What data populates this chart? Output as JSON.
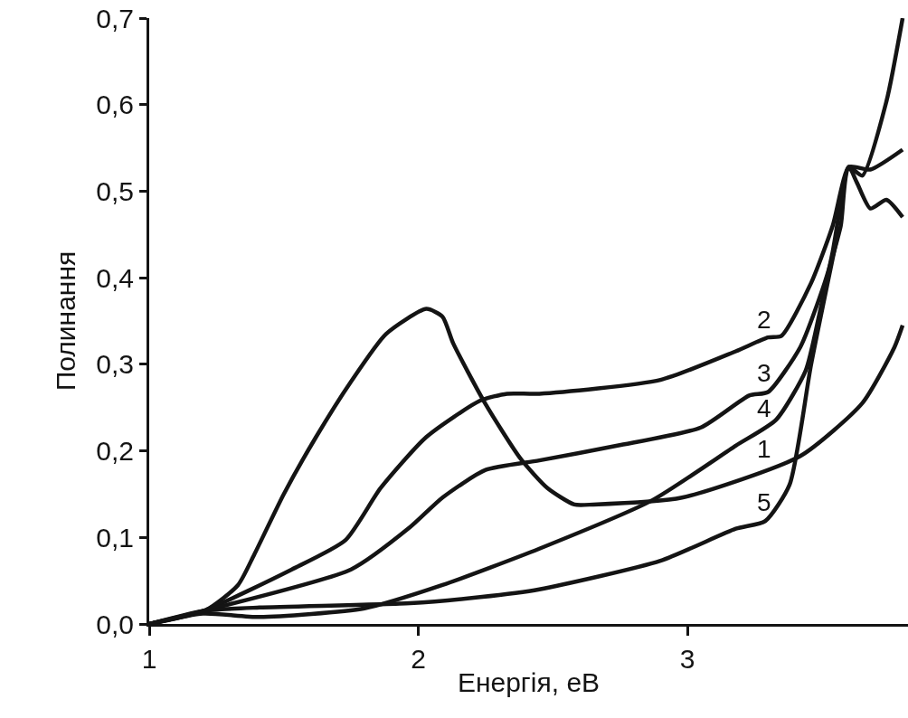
{
  "chart_data": {
    "type": "line",
    "xlabel": "Енергія, еВ",
    "ylabel": "Полинання",
    "xlim": [
      1,
      3.82
    ],
    "xticks": [
      1,
      2,
      3
    ],
    "ylim": [
      0,
      0.7
    ],
    "yticks": [
      {
        "value": 0,
        "label": "0,0"
      },
      {
        "value": 0.1,
        "label": "0,1"
      },
      {
        "value": 0.2,
        "label": "0,2"
      },
      {
        "value": 0.3,
        "label": "0,3"
      },
      {
        "value": 0.4,
        "label": "0,4"
      },
      {
        "value": 0.5,
        "label": "0,5"
      },
      {
        "value": 0.6,
        "label": "0,6"
      },
      {
        "value": 0.7,
        "label": "0,7"
      }
    ],
    "grid": false,
    "legend": false,
    "marker": "none",
    "line_style": "solid",
    "series": [
      {
        "name": "1",
        "color": "#141414",
        "x": [
          1,
          1.21,
          1.33,
          1.39,
          1.5,
          1.62,
          1.75,
          1.88,
          2.03,
          2.09,
          2.13,
          2.25,
          2.38,
          2.48,
          2.58,
          2.65,
          2.98,
          3.42,
          3.65,
          3.77,
          3.8
        ],
        "values": [
          0,
          0.016,
          0.045,
          0.08,
          0.15,
          0.216,
          0.28,
          0.335,
          0.364,
          0.355,
          0.324,
          0.254,
          0.191,
          0.157,
          0.138,
          0.138,
          0.146,
          0.194,
          0.255,
          0.32,
          0.345
        ]
      },
      {
        "name": "2",
        "color": "#141414",
        "x": [
          1,
          1.2,
          1.53,
          1.73,
          1.86,
          2.03,
          2.23,
          2.33,
          2.45,
          2.9,
          3.18,
          3.3,
          3.35,
          3.46,
          3.54,
          3.6,
          3.65,
          3.74,
          3.8
        ],
        "values": [
          0,
          0.015,
          0.063,
          0.097,
          0.157,
          0.216,
          0.258,
          0.266,
          0.266,
          0.282,
          0.315,
          0.331,
          0.333,
          0.394,
          0.46,
          0.528,
          0.518,
          0.604,
          0.7
        ]
      },
      {
        "name": "3",
        "color": "#141414",
        "x": [
          1,
          1.2,
          1.75,
          1.97,
          2.09,
          2.25,
          2.45,
          2.74,
          3.05,
          3.23,
          3.3,
          3.42,
          3.51,
          3.57,
          3.6,
          3.68,
          3.8
        ],
        "values": [
          0,
          0.015,
          0.063,
          0.112,
          0.146,
          0.178,
          0.189,
          0.206,
          0.227,
          0.264,
          0.268,
          0.32,
          0.394,
          0.46,
          0.528,
          0.525,
          0.548
        ]
      },
      {
        "name": "4",
        "color": "#141414",
        "x": [
          1,
          1.2,
          1.41,
          1.8,
          2.09,
          2.45,
          2.87,
          3.18,
          3.33,
          3.44,
          3.49,
          3.54,
          3.6,
          3.63,
          3.68,
          3.74,
          3.8
        ],
        "values": [
          0,
          0.012,
          0.008,
          0.018,
          0.045,
          0.087,
          0.143,
          0.206,
          0.236,
          0.293,
          0.357,
          0.43,
          0.528,
          0.51,
          0.48,
          0.49,
          0.47
        ]
      },
      {
        "name": "5",
        "color": "#141414",
        "x": [
          1,
          1.2,
          1.41,
          1.97,
          2.23,
          2.45,
          2.9,
          3.18,
          3.29,
          3.38,
          3.46,
          3.56
        ],
        "values": [
          0,
          0.015,
          0.019,
          0.024,
          0.031,
          0.04,
          0.073,
          0.11,
          0.119,
          0.161,
          0.3,
          0.452
        ]
      }
    ]
  }
}
